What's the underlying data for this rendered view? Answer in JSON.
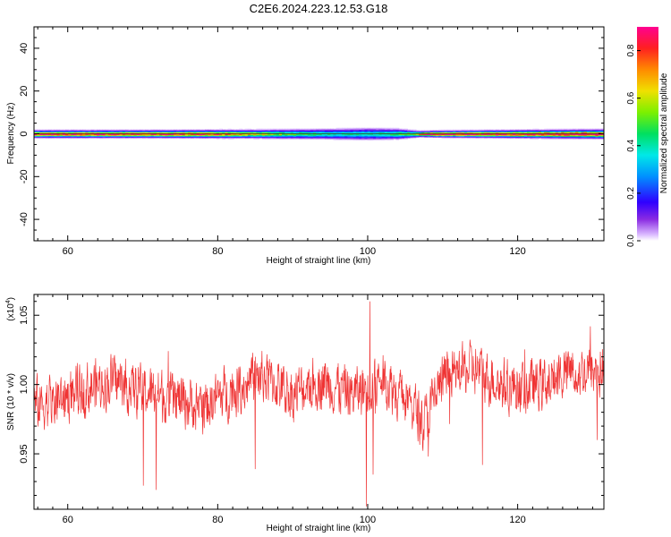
{
  "title": "C2E6.2024.223.12.53.G18",
  "chart_data": [
    {
      "type": "heatmap",
      "xlabel": "Height of straight line (km)",
      "ylabel": "Frequency (Hz)",
      "xlim": [
        55.5,
        131.5
      ],
      "ylim": [
        -50,
        50
      ],
      "xticks": [
        60,
        80,
        100,
        120
      ],
      "yticks": [
        -40,
        -20,
        0,
        20,
        40
      ],
      "colorbar": {
        "label": "Normalized spectral amplitude",
        "range": [
          0,
          0.9
        ],
        "ticks": [
          0.0,
          0.2,
          0.4,
          0.6,
          0.8
        ]
      },
      "peak_amplitude_profile": {
        "height_km": [
          56,
          60,
          65,
          70,
          75,
          80,
          85,
          90,
          95,
          100,
          103,
          106,
          108,
          112,
          116,
          120,
          125,
          131
        ],
        "amplitude": [
          0.85,
          0.88,
          0.87,
          0.86,
          0.84,
          0.78,
          0.65,
          0.5,
          0.42,
          0.4,
          0.45,
          0.58,
          0.88,
          0.9,
          0.9,
          0.89,
          0.88,
          0.87
        ]
      },
      "band_halfwidth_profile": {
        "height_km": [
          56,
          70,
          85,
          95,
          100,
          104,
          107,
          110,
          120,
          131
        ],
        "halfwidth_hz": [
          2.5,
          2.5,
          2.8,
          3.5,
          4.0,
          3.5,
          2.0,
          2.2,
          2.6,
          3.0
        ]
      },
      "grid": false,
      "legend": "colorbar-right"
    },
    {
      "type": "line",
      "xlabel": "Height of straight line (km)",
      "ylabel": "SNR (10 * v/v)",
      "yscale_note": "(x10^4)",
      "xlim": [
        55.5,
        131.5
      ],
      "ylim": [
        0.91,
        1.065
      ],
      "xticks": [
        60,
        80,
        100,
        120
      ],
      "yticks": [
        0.95,
        1.0,
        1.05
      ],
      "series": [
        {
          "color": "#ef3333",
          "trend": {
            "height_km": [
              55.5,
              60,
              63,
              66,
              70,
              74,
              78,
              82,
              86,
              90,
              94,
              98,
              100,
              102,
              104,
              106,
              107.5,
              110,
              114,
              118,
              122,
              126,
              131.5
            ],
            "snr": [
              0.985,
              0.992,
              0.998,
              1.003,
              0.995,
              0.99,
              0.985,
              0.996,
              1.006,
              0.993,
              1.003,
              0.993,
              0.998,
              1.004,
              0.995,
              0.985,
              0.972,
              1.004,
              1.012,
              1.0,
              0.998,
              1.008,
              1.01
            ]
          },
          "noise_amplitude": 0.012,
          "spikes": [
            {
              "height_km": 70.1,
              "snr": 0.927
            },
            {
              "height_km": 71.8,
              "snr": 0.924
            },
            {
              "height_km": 85.0,
              "snr": 0.939
            },
            {
              "height_km": 99.8,
              "snr": 0.912
            },
            {
              "height_km": 100.3,
              "snr": 1.06
            },
            {
              "height_km": 100.7,
              "snr": 0.935
            },
            {
              "height_km": 108.1,
              "snr": 0.948
            },
            {
              "height_km": 115.3,
              "snr": 0.942
            },
            {
              "height_km": 130.6,
              "snr": 0.96
            },
            {
              "height_km": 129.7,
              "snr": 1.042
            }
          ]
        }
      ],
      "grid": false
    }
  ]
}
